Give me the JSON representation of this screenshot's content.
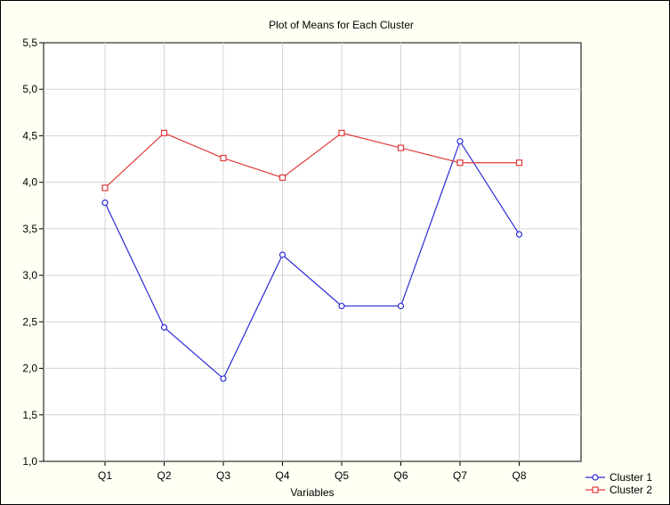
{
  "chart_data": {
    "type": "line",
    "title": "Plot of Means for Each Cluster",
    "xlabel": "Variables",
    "ylabel": "",
    "categories": [
      "Q1",
      "Q2",
      "Q3",
      "Q4",
      "Q5",
      "Q6",
      "Q7",
      "Q8"
    ],
    "ylim": [
      1.0,
      5.5
    ],
    "yticks": [
      "1,0",
      "1,5",
      "2,0",
      "2,5",
      "3,0",
      "3,5",
      "4,0",
      "4,5",
      "5,0",
      "5,5"
    ],
    "grid": true,
    "legend_position": "bottom-right, outside plot",
    "series": [
      {
        "name": "Cluster 1",
        "color": "#2b2bd6",
        "marker": "circle",
        "values": [
          3.78,
          2.44,
          1.89,
          3.22,
          2.67,
          2.67,
          4.44,
          3.44
        ]
      },
      {
        "name": "Cluster 2",
        "color": "#e03a3a",
        "marker": "square",
        "values": [
          3.94,
          4.53,
          4.26,
          4.05,
          4.53,
          4.37,
          4.21,
          4.21
        ]
      }
    ]
  }
}
